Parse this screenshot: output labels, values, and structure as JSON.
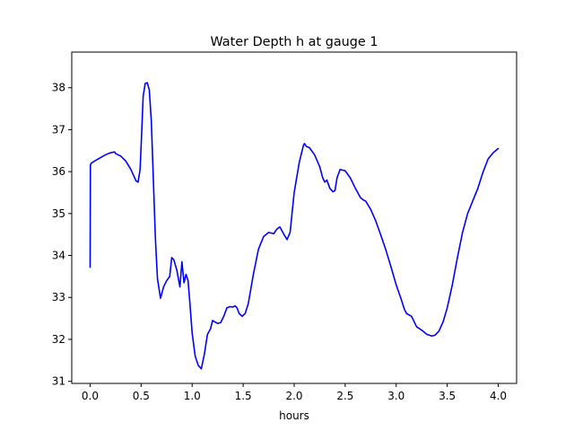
{
  "chart_data": {
    "type": "line",
    "title": "Water Depth h at gauge 1",
    "xlabel": "hours",
    "ylabel": "",
    "xlim": [
      -0.18,
      4.18
    ],
    "ylim": [
      30.95,
      38.85
    ],
    "xticks": [
      0.0,
      0.5,
      1.0,
      1.5,
      2.0,
      2.5,
      3.0,
      3.5,
      4.0
    ],
    "xtick_labels": [
      "0.0",
      "0.5",
      "1.0",
      "1.5",
      "2.0",
      "2.5",
      "3.0",
      "3.5",
      "4.0"
    ],
    "yticks": [
      31,
      32,
      33,
      34,
      35,
      36,
      37,
      38
    ],
    "ytick_labels": [
      "31",
      "32",
      "33",
      "34",
      "35",
      "36",
      "37",
      "38"
    ],
    "grid": false,
    "series": [
      {
        "color": "#0000ff",
        "x": [
          0.0,
          0.003,
          0.01,
          0.05,
          0.1,
          0.15,
          0.2,
          0.24,
          0.25,
          0.3,
          0.35,
          0.4,
          0.45,
          0.47,
          0.49,
          0.51,
          0.52,
          0.54,
          0.56,
          0.58,
          0.6,
          0.62,
          0.64,
          0.66,
          0.69,
          0.72,
          0.75,
          0.78,
          0.8,
          0.82,
          0.85,
          0.88,
          0.9,
          0.92,
          0.94,
          0.96,
          0.98,
          1.0,
          1.03,
          1.06,
          1.09,
          1.12,
          1.15,
          1.18,
          1.2,
          1.22,
          1.25,
          1.28,
          1.31,
          1.34,
          1.37,
          1.4,
          1.42,
          1.44,
          1.46,
          1.49,
          1.52,
          1.55,
          1.6,
          1.65,
          1.7,
          1.75,
          1.8,
          1.83,
          1.86,
          1.9,
          1.93,
          1.96,
          2.0,
          2.05,
          2.09,
          2.1,
          2.12,
          2.15,
          2.2,
          2.25,
          2.28,
          2.3,
          2.32,
          2.35,
          2.38,
          2.4,
          2.42,
          2.45,
          2.5,
          2.55,
          2.6,
          2.65,
          2.68,
          2.7,
          2.75,
          2.8,
          2.85,
          2.9,
          2.95,
          3.0,
          3.05,
          3.08,
          3.1,
          3.15,
          3.2,
          3.25,
          3.3,
          3.35,
          3.38,
          3.42,
          3.46,
          3.5,
          3.55,
          3.6,
          3.65,
          3.7,
          3.75,
          3.8,
          3.85,
          3.9,
          3.95,
          4.0
        ],
        "y": [
          33.72,
          36.15,
          36.2,
          36.26,
          36.33,
          36.4,
          36.45,
          36.47,
          36.43,
          36.37,
          36.25,
          36.05,
          35.78,
          35.75,
          36.05,
          37.2,
          37.8,
          38.1,
          38.12,
          37.95,
          37.2,
          35.8,
          34.4,
          33.45,
          32.98,
          33.25,
          33.4,
          33.5,
          33.95,
          33.9,
          33.65,
          33.25,
          33.85,
          33.35,
          33.55,
          33.4,
          32.8,
          32.15,
          31.6,
          31.38,
          31.3,
          31.65,
          32.12,
          32.25,
          32.45,
          32.42,
          32.38,
          32.4,
          32.55,
          32.75,
          32.78,
          32.77,
          32.8,
          32.75,
          32.62,
          32.55,
          32.62,
          32.85,
          33.55,
          34.15,
          34.45,
          34.55,
          34.52,
          34.63,
          34.68,
          34.5,
          34.38,
          34.55,
          35.5,
          36.22,
          36.62,
          36.67,
          36.6,
          36.57,
          36.4,
          36.12,
          35.85,
          35.75,
          35.8,
          35.6,
          35.52,
          35.55,
          35.85,
          36.05,
          36.02,
          35.85,
          35.6,
          35.38,
          35.32,
          35.3,
          35.1,
          34.82,
          34.48,
          34.12,
          33.72,
          33.3,
          32.95,
          32.72,
          32.62,
          32.55,
          32.3,
          32.22,
          32.12,
          32.08,
          32.1,
          32.2,
          32.42,
          32.75,
          33.3,
          33.95,
          34.55,
          35.0,
          35.3,
          35.6,
          35.98,
          36.3,
          36.45,
          36.55
        ]
      }
    ]
  }
}
